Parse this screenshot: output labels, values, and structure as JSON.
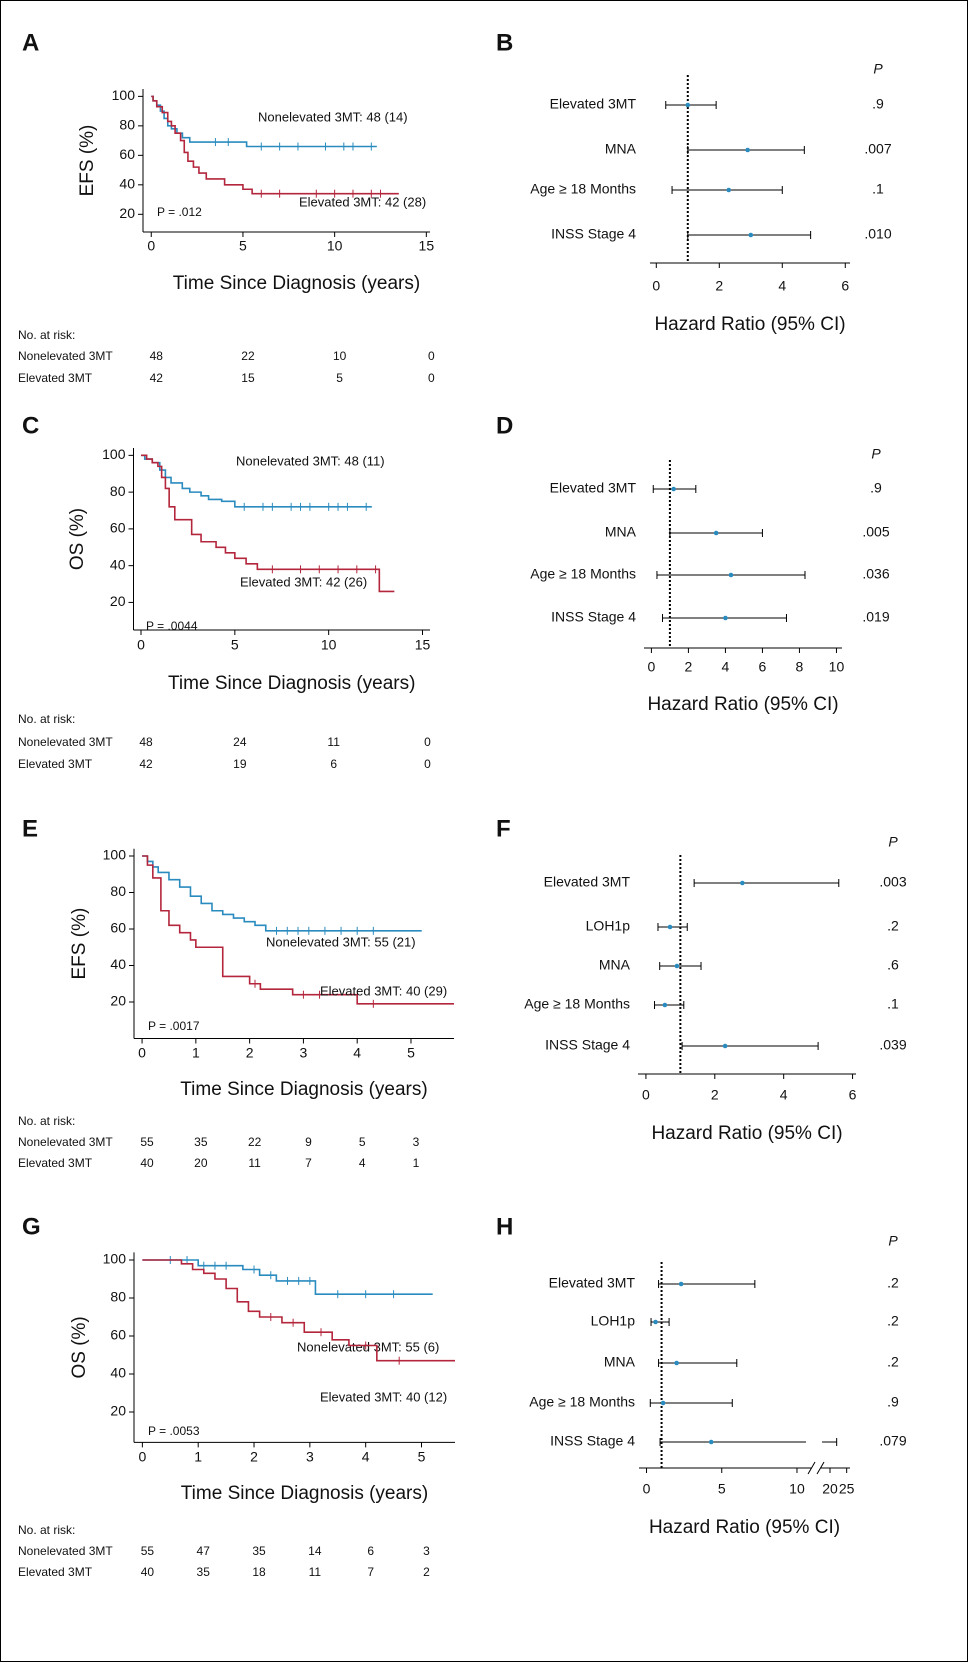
{
  "chart_data": [
    {
      "type": "km",
      "title": "A",
      "ylabel": "EFS (%)",
      "xlabel": "Time Since Diagnosis (years)",
      "xlim": [
        -0.45,
        15.2
      ],
      "ylim": [
        8,
        105
      ],
      "xticks": [
        0,
        5,
        10,
        15
      ],
      "yticks": [
        20,
        40,
        60,
        80,
        100
      ],
      "annotation": "P = .012",
      "series": [
        {
          "name": "Nonelevated 3MT: 48 (14)",
          "color": "#2a8bbf",
          "x": [
            0,
            0.1,
            0.3,
            0.5,
            0.7,
            0.9,
            1.1,
            1.4,
            1.7,
            2.1,
            5.2,
            12.3
          ],
          "values": [
            100,
            97,
            94,
            90,
            85,
            80,
            78,
            75,
            72,
            69,
            66,
            66
          ],
          "censored": [
            3.5,
            4.2,
            6,
            7,
            8,
            9.5,
            10.5,
            11,
            12
          ]
        },
        {
          "name": "Elevated 3MT: 42 (28)",
          "color": "#b3263c",
          "x": [
            0,
            0.1,
            0.3,
            0.6,
            0.9,
            1.1,
            1.3,
            1.6,
            1.8,
            2.0,
            2.3,
            2.6,
            3,
            4,
            5,
            5.5,
            13.5
          ],
          "values": [
            100,
            97,
            93,
            89,
            83,
            80,
            75,
            70,
            62,
            56,
            52,
            48,
            44,
            40,
            37,
            34,
            34
          ],
          "censored": [
            6,
            7,
            9,
            10,
            11,
            12,
            12.5
          ]
        }
      ],
      "risk_table": {
        "title": "No. at risk:",
        "rows": [
          {
            "name": "Nonelevated 3MT",
            "color": "#2a8bbf",
            "values": [
              48,
              22,
              10,
              0
            ]
          },
          {
            "name": "Elevated 3MT",
            "color": "#b3263c",
            "values": [
              42,
              15,
              5,
              0
            ]
          }
        ]
      }
    },
    {
      "type": "forest",
      "title": "B",
      "xlabel": "Hazard Ratio (95% CI)",
      "xlim": [
        -0.2,
        6.15
      ],
      "xticks": [
        0,
        2,
        4,
        6
      ],
      "reference": 1,
      "color": "#2a8bbf",
      "categories": [
        "Elevated 3MT",
        "MNA",
        "Age ≥ 18 Months",
        "INSS Stage 4"
      ],
      "values": [
        1.0,
        2.9,
        2.3,
        3.0
      ],
      "lower": [
        0.3,
        1.0,
        0.5,
        1.0
      ],
      "upper": [
        1.9,
        4.7,
        4.0,
        4.9
      ],
      "p_header": "P",
      "p_labels": [
        ".9",
        ".007",
        ".1",
        ".010"
      ]
    },
    {
      "type": "km",
      "title": "C",
      "ylabel": "OS (%)",
      "xlabel": "Time Since Diagnosis (years)",
      "xlim": [
        -0.4,
        15.4
      ],
      "ylim": [
        5,
        104
      ],
      "xticks": [
        0,
        5,
        10,
        15
      ],
      "yticks": [
        20,
        40,
        60,
        80,
        100
      ],
      "annotation": "P = .0044",
      "series": [
        {
          "name": "Nonelevated 3MT: 48 (11)",
          "color": "#2a8bbf",
          "x": [
            0,
            0.2,
            0.6,
            1,
            1.3,
            1.6,
            2.2,
            2.6,
            3.2,
            3.6,
            4.3,
            5,
            12.3
          ],
          "values": [
            100,
            98,
            96,
            92,
            88,
            85,
            82,
            80,
            78,
            76,
            75,
            72,
            72
          ],
          "censored": [
            5.5,
            6.5,
            7,
            8,
            8.5,
            9,
            10,
            10.5,
            11,
            12
          ]
        },
        {
          "name": "Elevated 3MT: 42 (26)",
          "color": "#b3263c",
          "x": [
            0,
            0.3,
            0.6,
            0.9,
            1.1,
            1.3,
            1.5,
            1.8,
            2.7,
            3.2,
            4,
            4.5,
            5,
            5.6,
            6.2,
            12.7,
            13.5
          ],
          "values": [
            100,
            98,
            96,
            94,
            88,
            82,
            72,
            65,
            57,
            53,
            50,
            47,
            44,
            41,
            38,
            26,
            26
          ],
          "censored": [
            7,
            8.5,
            9.5,
            10.5,
            11.5,
            12.5
          ]
        }
      ],
      "risk_table": {
        "title": "No. at risk:",
        "rows": [
          {
            "name": "Nonelevated 3MT",
            "color": "#2a8bbf",
            "values": [
              48,
              24,
              11,
              0
            ]
          },
          {
            "name": "Elevated 3MT",
            "color": "#b3263c",
            "values": [
              42,
              19,
              6,
              0
            ]
          }
        ]
      }
    },
    {
      "type": "forest",
      "title": "D",
      "xlabel": "Hazard Ratio (95% CI)",
      "xlim": [
        -0.4,
        10.3
      ],
      "xticks": [
        0,
        2,
        4,
        6,
        8,
        10
      ],
      "reference": 1,
      "color": "#2a8bbf",
      "categories": [
        "Elevated 3MT",
        "MNA",
        "Age ≥ 18 Months",
        "INSS Stage 4"
      ],
      "values": [
        1.2,
        3.5,
        4.3,
        4.0
      ],
      "lower": [
        0.1,
        1.0,
        0.3,
        0.6
      ],
      "upper": [
        2.4,
        6.0,
        8.3,
        7.3
      ],
      "p_header": "P",
      "p_labels": [
        ".9",
        ".005",
        ".036",
        ".019"
      ]
    },
    {
      "type": "km",
      "title": "E",
      "ylabel": "EFS (%)",
      "xlabel": "Time Since Diagnosis (years)",
      "xlim": [
        -0.15,
        5.8
      ],
      "ylim": [
        0,
        104
      ],
      "xticks": [
        0,
        1,
        2,
        3,
        4,
        5
      ],
      "yticks": [
        20,
        40,
        60,
        80,
        100
      ],
      "annotation": "P = .0017",
      "series": [
        {
          "name": "Nonelevated 3MT: 55 (21)",
          "color": "#2a8bbf",
          "x": [
            0,
            0.1,
            0.2,
            0.3,
            0.5,
            0.7,
            0.9,
            1.1,
            1.3,
            1.5,
            1.7,
            1.9,
            2.1,
            2.3,
            5.2
          ],
          "values": [
            100,
            97,
            94,
            91,
            87,
            83,
            78,
            74,
            70,
            68,
            66,
            64,
            62,
            59,
            59
          ],
          "censored": [
            2.5,
            2.7,
            2.9,
            3.1,
            3.4,
            3.7,
            4,
            4.3
          ]
        },
        {
          "name": "Elevated 3MT: 40 (29)",
          "color": "#b3263c",
          "x": [
            0,
            0.1,
            0.2,
            0.35,
            0.5,
            0.7,
            0.9,
            1.0,
            1.5,
            2.0,
            2.2,
            2.8,
            4.0,
            5.8
          ],
          "values": [
            100,
            95,
            88,
            70,
            62,
            58,
            54,
            50,
            34,
            30,
            27,
            24,
            19,
            19
          ],
          "censored": [
            2.1,
            3,
            3.3,
            4.3
          ]
        }
      ],
      "risk_table": {
        "title": "No. at risk:",
        "rows": [
          {
            "name": "Nonelevated 3MT",
            "color": "#2a8bbf",
            "values": [
              55,
              35,
              22,
              9,
              5,
              3
            ]
          },
          {
            "name": "Elevated 3MT",
            "color": "#b3263c",
            "values": [
              40,
              20,
              11,
              7,
              4,
              1
            ]
          }
        ]
      }
    },
    {
      "type": "forest",
      "title": "F",
      "xlabel": "Hazard Ratio (95% CI)",
      "xlim": [
        -0.23,
        6.1
      ],
      "xticks": [
        0,
        2,
        4,
        6
      ],
      "reference": 1,
      "color": "#2a8bbf",
      "categories": [
        "Elevated 3MT",
        "LOH1p",
        "MNA",
        "Age ≥ 18 Months",
        "INSS Stage 4"
      ],
      "values": [
        2.8,
        0.7,
        0.9,
        0.55,
        2.3
      ],
      "lower": [
        1.4,
        0.35,
        0.4,
        0.25,
        1.05
      ],
      "upper": [
        5.6,
        1.2,
        1.6,
        1.1,
        5.0
      ],
      "p_header": "P",
      "p_labels": [
        ".003",
        ".2",
        ".6",
        ".1",
        ".039"
      ]
    },
    {
      "type": "km",
      "title": "G",
      "ylabel": "OS (%)",
      "xlabel": "Time Since Diagnosis (years)",
      "xlim": [
        -0.15,
        5.6
      ],
      "ylim": [
        4,
        104
      ],
      "xticks": [
        0,
        1,
        2,
        3,
        4,
        5
      ],
      "yticks": [
        20,
        40,
        60,
        80,
        100
      ],
      "annotation": "P = .0053",
      "series": [
        {
          "name": "Nonelevated 3MT: 55 (6)",
          "color": "#2a8bbf",
          "x": [
            0,
            1.0,
            1.8,
            2.1,
            2.4,
            3.1,
            5.2
          ],
          "values": [
            100,
            97,
            95,
            92,
            89,
            82,
            82
          ],
          "censored": [
            0.5,
            0.8,
            1.1,
            1.3,
            1.5,
            2,
            2.3,
            2.6,
            2.8,
            3,
            3.5,
            4,
            4.5
          ]
        },
        {
          "name": "Elevated 3MT: 40 (12)",
          "color": "#b3263c",
          "x": [
            0,
            0.7,
            0.9,
            1.1,
            1.3,
            1.5,
            1.7,
            1.9,
            2.1,
            2.5,
            2.9,
            3.4,
            3.7,
            4.2,
            5.6
          ],
          "values": [
            100,
            98,
            95,
            93,
            90,
            85,
            78,
            73,
            70,
            67,
            62,
            58,
            55,
            47,
            47
          ],
          "censored": [
            2.3,
            2.7,
            3.2,
            4,
            4.6
          ]
        }
      ],
      "risk_table": {
        "title": "No. at risk:",
        "rows": [
          {
            "name": "Nonelevated 3MT",
            "color": "#2a8bbf",
            "values": [
              55,
              47,
              35,
              14,
              6,
              3
            ]
          },
          {
            "name": "Elevated 3MT",
            "color": "#b3263c",
            "values": [
              40,
              35,
              18,
              11,
              7,
              2
            ]
          }
        ]
      }
    },
    {
      "type": "forest",
      "title": "H",
      "xlabel": "Hazard Ratio (95% CI)",
      "xlim": [
        -0.5,
        26
      ],
      "xbreak": [
        11,
        17
      ],
      "xticks": [
        0,
        5,
        10,
        20,
        25
      ],
      "reference": 1,
      "color": "#2a8bbf",
      "categories": [
        "Elevated 3MT",
        "LOH1p",
        "MNA",
        "Age ≥ 18 Months",
        "INSS Stage 4"
      ],
      "values": [
        2.3,
        0.6,
        2.0,
        1.1,
        4.3
      ],
      "lower": [
        0.8,
        0.3,
        0.8,
        0.25,
        0.9
      ],
      "upper": [
        7.2,
        1.5,
        6.0,
        5.7,
        22
      ],
      "p_header": "P",
      "p_labels": [
        ".2",
        ".2",
        ".2",
        ".9",
        ".079"
      ]
    }
  ]
}
